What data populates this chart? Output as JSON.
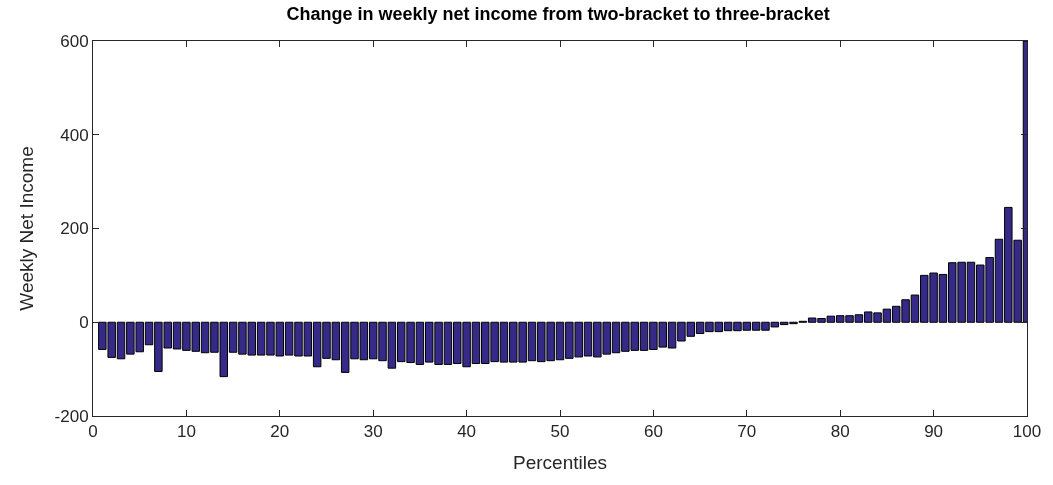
{
  "chart_data": {
    "type": "bar",
    "title": "Change in weekly net income from two-bracket to three-bracket",
    "xlabel": "Percentiles",
    "ylabel": "Weekly Net Income",
    "x": [
      1,
      2,
      3,
      4,
      5,
      6,
      7,
      8,
      9,
      10,
      11,
      12,
      13,
      14,
      15,
      16,
      17,
      18,
      19,
      20,
      21,
      22,
      23,
      24,
      25,
      26,
      27,
      28,
      29,
      30,
      31,
      32,
      33,
      34,
      35,
      36,
      37,
      38,
      39,
      40,
      41,
      42,
      43,
      44,
      45,
      46,
      47,
      48,
      49,
      50,
      51,
      52,
      53,
      54,
      55,
      56,
      57,
      58,
      59,
      60,
      61,
      62,
      63,
      64,
      65,
      66,
      67,
      68,
      69,
      70,
      71,
      72,
      73,
      74,
      75,
      76,
      77,
      78,
      79,
      80,
      81,
      82,
      83,
      84,
      85,
      86,
      87,
      88,
      89,
      90,
      91,
      92,
      93,
      94,
      95,
      96,
      97,
      98,
      99,
      100
    ],
    "values": [
      -58,
      -75,
      -78,
      -68,
      -63,
      -48,
      -105,
      -55,
      -57,
      -60,
      -62,
      -65,
      -64,
      -116,
      -64,
      -68,
      -70,
      -70,
      -70,
      -72,
      -70,
      -72,
      -72,
      -95,
      -77,
      -80,
      -107,
      -78,
      -80,
      -78,
      -82,
      -98,
      -84,
      -86,
      -90,
      -85,
      -90,
      -90,
      -88,
      -95,
      -88,
      -88,
      -84,
      -85,
      -85,
      -85,
      -82,
      -84,
      -82,
      -80,
      -77,
      -74,
      -72,
      -74,
      -68,
      -65,
      -62,
      -60,
      -60,
      -58,
      -53,
      -55,
      -40,
      -30,
      -24,
      -20,
      -20,
      -18,
      -18,
      -17,
      -17,
      -17,
      -10,
      -5,
      -3,
      2,
      9,
      8,
      13,
      14,
      14,
      16,
      22,
      20,
      28,
      34,
      48,
      58,
      100,
      105,
      102,
      127,
      128,
      128,
      122,
      138,
      177,
      245,
      175,
      600
    ],
    "color": "#352a87",
    "xlim": [
      0,
      100
    ],
    "ylim": [
      -200,
      600
    ],
    "xticks": [
      0,
      10,
      20,
      30,
      40,
      50,
      60,
      70,
      80,
      90,
      100
    ],
    "yticks": [
      -200,
      0,
      200,
      400,
      600
    ]
  }
}
